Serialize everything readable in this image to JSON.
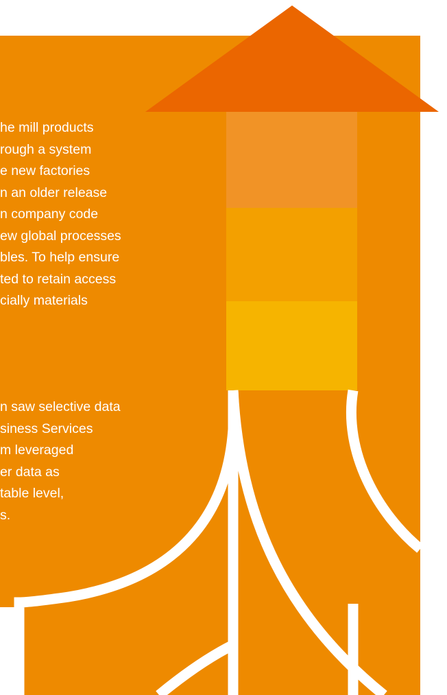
{
  "colors": {
    "background": "#ffffff",
    "panel_orange": "#ee8a00",
    "arrow_head": "#eb6600",
    "block_top": "#f19326",
    "block_middle": "#f3a000",
    "block_bottom": "#f6b400",
    "branch_lines": "#ffffff",
    "text": "#ffffff"
  },
  "icons": {
    "upward_arrow": "up-arrow-icon",
    "branching_lines": "branching-roots-graphic"
  },
  "paragraphs": [
    {
      "lines": [
        "he mill products",
        "rough a system",
        "e new factories",
        "n an older release",
        "n company code",
        "ew global processes",
        "bles. To help ensure",
        "ted to retain access",
        "cially materials"
      ]
    },
    {
      "lines": [
        "n saw selective data",
        "siness Services",
        "m leveraged",
        "er data as",
        "table level,",
        "s."
      ]
    }
  ]
}
